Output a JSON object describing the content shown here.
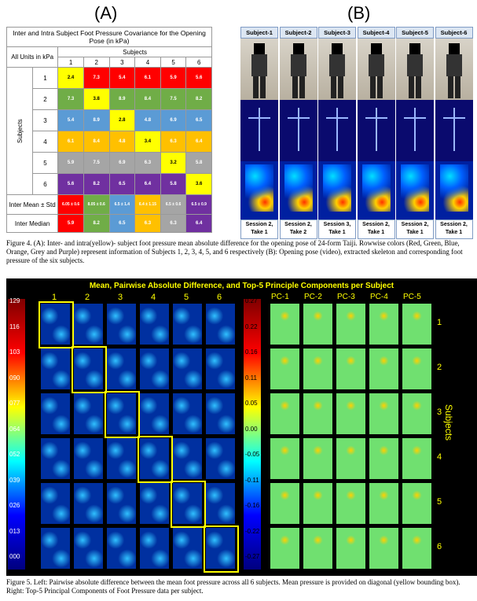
{
  "panel_a_label": "(A)",
  "panel_b_label": "(B)",
  "table": {
    "title": "Inter and Intra Subject Foot Pressure Covariance for the Opening Pose (in kPa)",
    "units_label": "All Units in kPa",
    "subjects_label": "Subjects",
    "col_headers": [
      "1",
      "2",
      "3",
      "4",
      "5",
      "6"
    ],
    "row_headers": [
      "1",
      "2",
      "3",
      "4",
      "5",
      "6"
    ],
    "rows": [
      [
        "2.4",
        "7.3",
        "5.4",
        "6.1",
        "5.9",
        "5.6"
      ],
      [
        "7.3",
        "3.8",
        "8.9",
        "8.4",
        "7.5",
        "8.2"
      ],
      [
        "5.4",
        "8.9",
        "2.8",
        "4.8",
        "6.9",
        "6.5"
      ],
      [
        "6.1",
        "8.4",
        "4.8",
        "3.4",
        "6.3",
        "6.4"
      ],
      [
        "5.9",
        "7.5",
        "6.9",
        "6.3",
        "3.2",
        "5.8"
      ],
      [
        "5.6",
        "8.2",
        "6.5",
        "6.4",
        "5.8",
        "3.6"
      ]
    ],
    "row_colors": [
      "#ff0000",
      "#70ad47",
      "#5b9bd5",
      "#ffc000",
      "#a5a5a5",
      "#7030a0"
    ],
    "inter_mean_label": "Inter Mean ± Std",
    "inter_mean": [
      "6.05 ± 0.6",
      "8.05 ± 0.6",
      "6.5 ± 1.4",
      "6.4 ± 1.15",
      "6.5 ± 0.6",
      "6.5 ± 0.9"
    ],
    "inter_median_label": "Inter Median",
    "inter_median": [
      "5.9",
      "8.2",
      "6.5",
      "6.3",
      "6.3",
      "6.4"
    ]
  },
  "subjects_b": [
    {
      "name": "Subject-1",
      "session": "Session 2, Take 1"
    },
    {
      "name": "Subject-2",
      "session": "Session 2, Take 2"
    },
    {
      "name": "Subject-3",
      "session": "Session 3, Take 1"
    },
    {
      "name": "Subject-4",
      "session": "Session 2, Take 1"
    },
    {
      "name": "Subject-5",
      "session": "Session 2, Take 1"
    },
    {
      "name": "Subject-6",
      "session": "Session 2, Take 1"
    }
  ],
  "caption4": "Figure 4. (A): Inter- and intra(yellow)- subject foot pressure mean absolute difference for the opening pose of 24-form Taiji. Rowwise colors (Red, Green, Blue, Orange, Grey and Purple) represent information of Subjects 1, 2, 3, 4, 5, and 6 respectively (B): Opening pose (video), extracted skeleton and corresponding foot pressure of the six subjects.",
  "fig5": {
    "title": "Mean, Pairwise Absolute Difference, and Top-5 Principle Components per Subject",
    "col_labels": [
      "1",
      "2",
      "3",
      "4",
      "5",
      "6"
    ],
    "pc_labels": [
      "PC-1",
      "PC-2",
      "PC-3",
      "PC-4",
      "PC-5"
    ],
    "row_labels": [
      "1",
      "2",
      "3",
      "4",
      "5",
      "6"
    ],
    "subjects_axis": "Subjects",
    "left_scale": [
      "129",
      "116",
      "103",
      "090",
      "077",
      "064",
      "052",
      "039",
      "026",
      "013",
      "000"
    ],
    "mid_scale": [
      "0.27",
      "0.22",
      "0.16",
      "0.11",
      "0.05",
      "0.00",
      "-0.05",
      "-0.11",
      "-0.16",
      "-0.22",
      "-0.27"
    ]
  },
  "caption5": "Figure 5. Left: Pairwise absolute difference between the mean foot pressure across all 6 subjects. Mean pressure is provided on diagonal (yellow bounding box). Right: Top-5 Principal Components of Foot Pressure data per subject."
}
